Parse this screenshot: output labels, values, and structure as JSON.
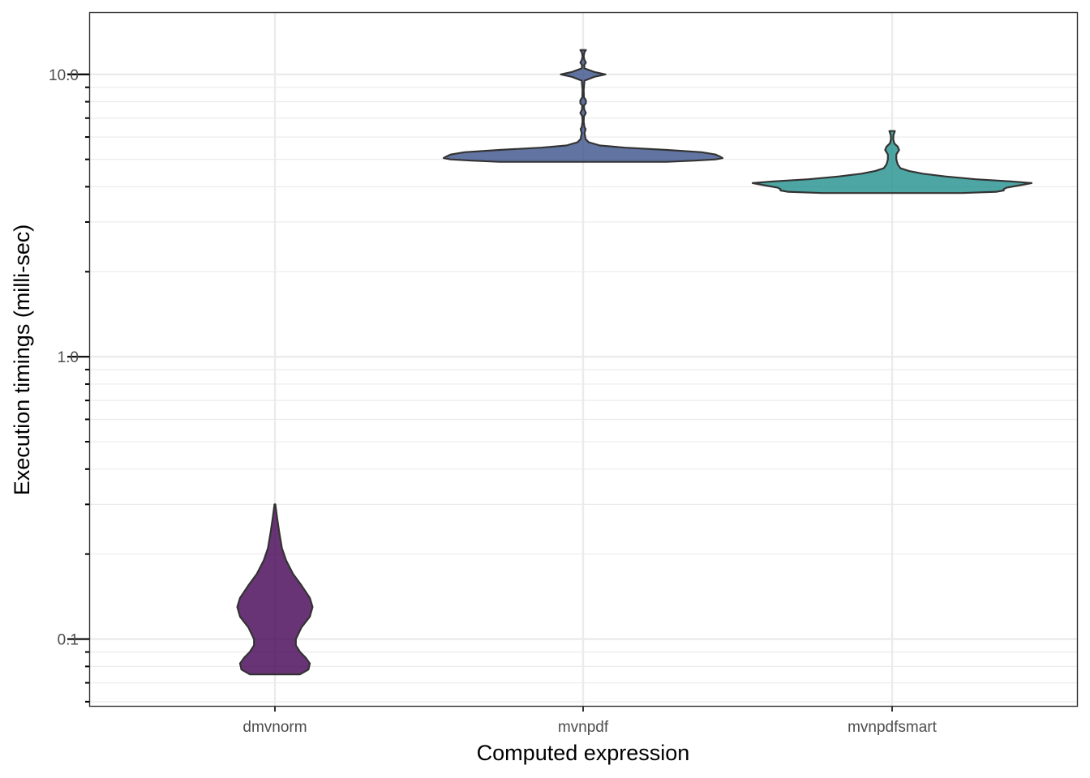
{
  "chart_data": {
    "type": "violin",
    "xlabel": "Computed expression",
    "ylabel": "Execution timings (milli-sec)",
    "y_scale": "log10",
    "ylim": [
      0.058,
      16.5
    ],
    "y_major_ticks": [
      0.1,
      1.0,
      10.0
    ],
    "y_tick_labels": [
      "0.1",
      "1.0",
      "10.0"
    ],
    "categories": [
      "dmvnorm",
      "mvnpdf",
      "mvnpdfsmart"
    ],
    "grid": true,
    "legend": "none",
    "series": [
      {
        "category": "dmvnorm",
        "color": "#440154",
        "min": 0.075,
        "max": 0.3,
        "density": [
          [
            0.075,
            0.18
          ],
          [
            0.078,
            0.24
          ],
          [
            0.082,
            0.25
          ],
          [
            0.086,
            0.22
          ],
          [
            0.09,
            0.18
          ],
          [
            0.095,
            0.15
          ],
          [
            0.1,
            0.15
          ],
          [
            0.11,
            0.19
          ],
          [
            0.12,
            0.25
          ],
          [
            0.13,
            0.27
          ],
          [
            0.14,
            0.25
          ],
          [
            0.155,
            0.19
          ],
          [
            0.17,
            0.13
          ],
          [
            0.19,
            0.08
          ],
          [
            0.21,
            0.05
          ],
          [
            0.24,
            0.03
          ],
          [
            0.27,
            0.015
          ],
          [
            0.3,
            0.003
          ]
        ]
      },
      {
        "category": "mvnpdf",
        "color": "#3b528b",
        "min": 4.9,
        "max": 12.2,
        "density": [
          [
            4.9,
            0.6
          ],
          [
            4.95,
            0.8
          ],
          [
            5.0,
            0.95
          ],
          [
            5.05,
            1.0
          ],
          [
            5.12,
            0.98
          ],
          [
            5.2,
            0.95
          ],
          [
            5.3,
            0.85
          ],
          [
            5.4,
            0.6
          ],
          [
            5.5,
            0.3
          ],
          [
            5.6,
            0.12
          ],
          [
            5.75,
            0.04
          ],
          [
            5.9,
            0.018
          ],
          [
            6.2,
            0.01
          ],
          [
            6.4,
            0.018
          ],
          [
            6.5,
            0.01
          ],
          [
            6.8,
            0.004
          ],
          [
            7.1,
            0.006
          ],
          [
            7.3,
            0.02
          ],
          [
            7.5,
            0.008
          ],
          [
            7.75,
            0.006
          ],
          [
            7.9,
            0.02
          ],
          [
            8.1,
            0.02
          ],
          [
            8.3,
            0.006
          ],
          [
            8.8,
            0.004
          ],
          [
            9.5,
            0.01
          ],
          [
            9.8,
            0.08
          ],
          [
            10.0,
            0.16
          ],
          [
            10.2,
            0.08
          ],
          [
            10.5,
            0.01
          ],
          [
            10.8,
            0.008
          ],
          [
            11.0,
            0.02
          ],
          [
            11.3,
            0.008
          ],
          [
            11.6,
            0.004
          ],
          [
            12.0,
            0.01
          ],
          [
            12.2,
            0.02
          ]
        ]
      },
      {
        "category": "mvnpdfsmart",
        "color": "#21908c",
        "min": 3.8,
        "max": 6.3,
        "density": [
          [
            3.8,
            0.5
          ],
          [
            3.84,
            0.75
          ],
          [
            3.88,
            0.8
          ],
          [
            3.92,
            0.8
          ],
          [
            3.97,
            0.82
          ],
          [
            4.05,
            0.92
          ],
          [
            4.12,
            1.0
          ],
          [
            4.18,
            0.85
          ],
          [
            4.25,
            0.6
          ],
          [
            4.35,
            0.38
          ],
          [
            4.45,
            0.22
          ],
          [
            4.55,
            0.12
          ],
          [
            4.65,
            0.06
          ],
          [
            4.8,
            0.04
          ],
          [
            5.0,
            0.03
          ],
          [
            5.2,
            0.03
          ],
          [
            5.4,
            0.05
          ],
          [
            5.55,
            0.04
          ],
          [
            5.7,
            0.015
          ],
          [
            5.9,
            0.008
          ],
          [
            6.1,
            0.01
          ],
          [
            6.3,
            0.02
          ]
        ]
      }
    ]
  }
}
